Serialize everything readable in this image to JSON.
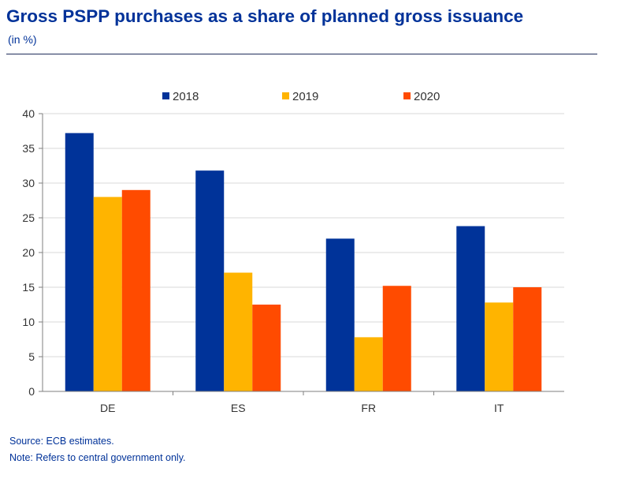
{
  "title": "Gross PSPP purchases as a share of planned gross issuance",
  "subtitle": "(in %)",
  "source": "Source: ECB estimates.",
  "note": "Note: Refers to central government only.",
  "colors": {
    "title": "#003299",
    "2018": "#003399",
    "2019": "#FFB400",
    "2020": "#FF4B00",
    "grid": "#d9d9d9"
  },
  "chart_data": {
    "type": "bar",
    "title": "Gross PSPP purchases as a share of planned gross issuance",
    "subtitle": "(in %)",
    "categories": [
      "DE",
      "ES",
      "FR",
      "IT"
    ],
    "series": [
      {
        "name": "2018",
        "color": "#003399",
        "values": [
          37.2,
          31.8,
          22.0,
          23.8
        ]
      },
      {
        "name": "2019",
        "color": "#FFB400",
        "values": [
          28.0,
          17.1,
          7.8,
          12.8
        ]
      },
      {
        "name": "2020",
        "color": "#FF4B00",
        "values": [
          29.0,
          12.5,
          15.2,
          15.0
        ]
      }
    ],
    "ylim": [
      0,
      40
    ],
    "yticks": [
      0,
      5,
      10,
      15,
      20,
      25,
      30,
      35,
      40
    ],
    "grid": true,
    "legend": "top-center"
  }
}
